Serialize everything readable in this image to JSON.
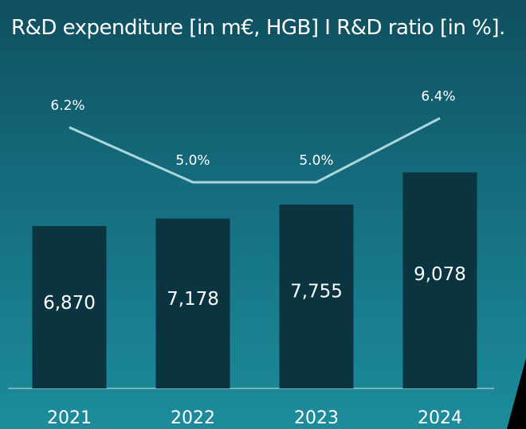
{
  "chart_data": {
    "type": "bar",
    "title": "R&D expenditure [in m€, HGB] I R&D ratio [in %].",
    "categories": [
      "2021",
      "2022",
      "2023",
      "2024"
    ],
    "series": [
      {
        "values": [
          6870,
          7178,
          7755,
          9078
        ],
        "value_labels": [
          "6,870",
          "7,178",
          "7,755",
          "9,078"
        ],
        "color": "#0b3441"
      },
      {
        "type": "line",
        "values": [
          6.2,
          5.0,
          5.0,
          6.4
        ],
        "value_labels": [
          "6.2%",
          "5.0%",
          "5.0%",
          "6.4%"
        ],
        "color": "#a9d5dd"
      }
    ],
    "grid": false,
    "legend": "none",
    "colors": {
      "background_top": "#0f4f5f",
      "background_bottom": "#1c8c9b",
      "baseline": "#8fc3cc",
      "corner_accent": "#000000"
    }
  }
}
